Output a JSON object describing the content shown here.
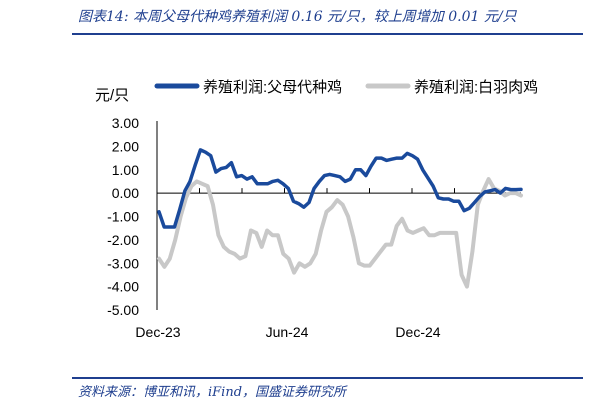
{
  "figure": {
    "title": "图表14:  本周父母代种鸡养殖利润 0.16 元/只，较上周增加 0.01 元/只",
    "source": "资料来源：博亚和讯，iFind，国盛证券研究所"
  },
  "chart_data": {
    "type": "line",
    "ylabel": "元/只",
    "ylim": [
      -5,
      3
    ],
    "yticks": [
      "3.00",
      "2.00",
      "1.00",
      "0.00",
      "-1.00",
      "-2.00",
      "-3.00",
      "-4.00",
      "-5.00"
    ],
    "xticks": [
      "Dec-23",
      "Jun-24",
      "Dec-24"
    ],
    "legend_position": "top",
    "series": [
      {
        "name": "养殖利润:父母代种鸡",
        "color": "#1a4a9c",
        "values": [
          -0.8,
          -1.45,
          -1.45,
          -1.45,
          -0.7,
          0.1,
          0.5,
          1.2,
          1.85,
          1.75,
          1.6,
          0.9,
          1.05,
          1.1,
          1.3,
          0.7,
          0.75,
          0.6,
          0.7,
          0.4,
          0.4,
          0.4,
          0.5,
          0.55,
          0.4,
          0.2,
          -0.35,
          -0.45,
          -0.6,
          -0.4,
          0.2,
          0.5,
          0.75,
          0.8,
          0.75,
          0.7,
          0.5,
          0.6,
          1.0,
          1.0,
          0.75,
          1.15,
          1.5,
          1.5,
          1.4,
          1.45,
          1.5,
          1.5,
          1.7,
          1.6,
          1.45,
          1.0,
          0.65,
          0.3,
          -0.2,
          -0.25,
          -0.25,
          -0.35,
          -0.35,
          -0.75,
          -0.65,
          -0.4,
          -0.15,
          0.05,
          0.1,
          0.15,
          0.0,
          0.2,
          0.15,
          0.15,
          0.16
        ]
      },
      {
        "name": "养殖利润:白羽肉鸡",
        "color": "#c8c8c8",
        "values": [
          -2.8,
          -3.15,
          -2.8,
          -2.0,
          -1.0,
          -0.2,
          0.3,
          0.5,
          0.4,
          0.3,
          -0.5,
          -1.8,
          -2.3,
          -2.5,
          -2.6,
          -2.8,
          -2.7,
          -1.6,
          -1.7,
          -2.3,
          -1.6,
          -1.8,
          -1.8,
          -2.6,
          -2.8,
          -3.4,
          -3.0,
          -3.15,
          -3.0,
          -2.6,
          -1.6,
          -0.8,
          -0.6,
          -0.3,
          -0.5,
          -1.0,
          -1.9,
          -3.0,
          -3.1,
          -3.1,
          -2.8,
          -2.5,
          -2.2,
          -2.2,
          -1.4,
          -1.1,
          -1.6,
          -1.7,
          -1.6,
          -1.5,
          -1.8,
          -1.8,
          -1.7,
          -1.7,
          -1.7,
          -1.7,
          -3.5,
          -4.0,
          -2.5,
          -0.5,
          0.1,
          0.6,
          0.2,
          0.1,
          -0.1,
          0.0,
          0.0,
          -0.1
        ]
      }
    ]
  }
}
